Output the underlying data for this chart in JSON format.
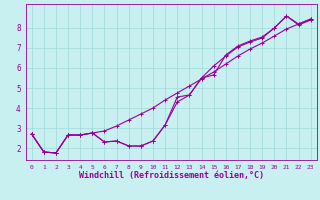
{
  "xlabel": "Windchill (Refroidissement éolien,°C)",
  "background_color": "#c8f0f0",
  "grid_color": "#a0d8d8",
  "line_color": "#990099",
  "xlim": [
    -0.5,
    23.5
  ],
  "ylim": [
    1.4,
    9.2
  ],
  "xticks": [
    0,
    1,
    2,
    3,
    4,
    5,
    6,
    7,
    8,
    9,
    10,
    11,
    12,
    13,
    14,
    15,
    16,
    17,
    18,
    19,
    20,
    21,
    22,
    23
  ],
  "yticks": [
    2,
    3,
    4,
    5,
    6,
    7,
    8
  ],
  "series_data": {
    "line1_x": [
      0,
      1,
      2,
      3,
      4,
      5,
      6,
      7,
      8,
      9,
      10,
      11,
      12,
      13,
      14,
      15,
      16,
      17,
      18,
      19,
      20,
      21,
      22,
      23
    ],
    "line1_y": [
      2.7,
      1.8,
      1.75,
      2.65,
      2.65,
      2.75,
      2.3,
      2.35,
      2.1,
      2.1,
      2.35,
      3.15,
      4.55,
      4.65,
      5.5,
      6.1,
      6.6,
      7.05,
      7.3,
      7.5,
      8.0,
      8.6,
      8.15,
      8.4
    ],
    "line2_x": [
      0,
      1,
      2,
      3,
      4,
      5,
      6,
      7,
      8,
      9,
      10,
      11,
      12,
      13,
      14,
      15,
      16,
      17,
      18,
      19,
      20,
      21,
      22,
      23
    ],
    "line2_y": [
      2.7,
      1.8,
      1.75,
      2.65,
      2.65,
      2.75,
      2.3,
      2.35,
      2.1,
      2.1,
      2.35,
      3.15,
      4.3,
      4.65,
      5.5,
      5.65,
      6.65,
      7.1,
      7.35,
      7.55,
      8.0,
      8.6,
      8.2,
      8.45
    ],
    "line3_x": [
      0,
      1,
      2,
      3,
      4,
      5,
      6,
      7,
      8,
      9,
      10,
      11,
      12,
      13,
      14,
      15,
      16,
      17,
      18,
      19,
      20,
      21,
      22,
      23
    ],
    "line3_y": [
      2.7,
      1.8,
      1.75,
      2.65,
      2.65,
      2.75,
      2.85,
      3.1,
      3.4,
      3.7,
      4.0,
      4.4,
      4.75,
      5.1,
      5.45,
      5.8,
      6.2,
      6.6,
      6.95,
      7.25,
      7.6,
      7.95,
      8.2,
      8.45
    ]
  },
  "marker": "+",
  "markersize": 3,
  "linewidth": 0.8,
  "tick_fontsize": 4.5,
  "xlabel_fontsize": 6.0
}
